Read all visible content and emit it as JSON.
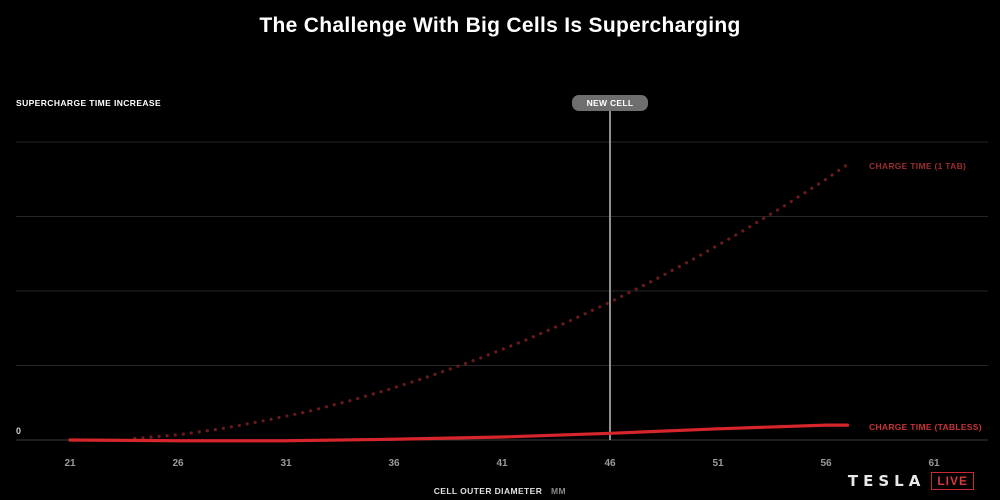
{
  "chart_data": {
    "type": "line",
    "title": "The Challenge With Big Cells Is Supercharging",
    "ylabel": "SUPERCHARGE TIME INCREASE",
    "xlabel": "CELL OUTER DIAMETER",
    "xunit": "MM",
    "x_ticks": [
      "21",
      "26",
      "31",
      "36",
      "41",
      "46",
      "51",
      "56",
      "61"
    ],
    "y_ticks": [
      "0"
    ],
    "xlim": [
      18.5,
      63.5
    ],
    "ylim": [
      0,
      4
    ],
    "grid": true,
    "annotation": {
      "label": "NEW CELL",
      "x": 46
    },
    "series": [
      {
        "name": "CHARGE TIME (1 TAB)",
        "style": "dotted",
        "color": "#6b1a1c",
        "x": [
          24,
          26,
          28,
          30,
          32,
          34,
          36,
          38,
          40,
          42,
          44,
          46,
          48,
          50,
          52,
          54,
          56,
          57
        ],
        "y": [
          0.02,
          0.07,
          0.15,
          0.26,
          0.38,
          0.53,
          0.7,
          0.89,
          1.1,
          1.33,
          1.58,
          1.85,
          2.14,
          2.45,
          2.78,
          3.13,
          3.5,
          3.7
        ]
      },
      {
        "name": "CHARGE TIME (TABLESS)",
        "style": "solid",
        "color": "#d6252b",
        "x": [
          21,
          26,
          31,
          36,
          41,
          46,
          51,
          56,
          57
        ],
        "y": [
          0.0,
          -0.01,
          -0.01,
          0.01,
          0.04,
          0.09,
          0.15,
          0.2,
          0.2
        ]
      }
    ]
  },
  "brand": {
    "name": "TESLA",
    "badge": "LIVE"
  }
}
